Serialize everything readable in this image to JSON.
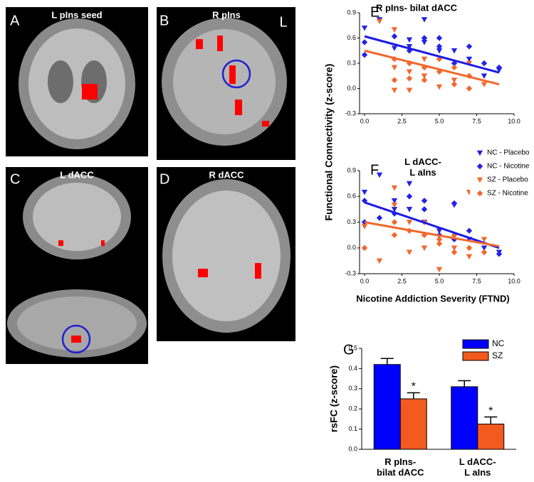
{
  "panels": [
    {
      "letter": "A",
      "label": "L pIns seed"
    },
    {
      "letter": "B",
      "label": "R pIns",
      "side": "L"
    },
    {
      "letter": "C",
      "label": "L dACC"
    },
    {
      "letter": "D",
      "label": "R dACC"
    }
  ],
  "chart_data": [
    {
      "type": "scatter",
      "letter": "E",
      "title": "R pIns- bilat dACC",
      "ylabel": "Functional Connectivity (z-score)",
      "xlim": [
        0,
        10
      ],
      "ylim": [
        -0.3,
        0.9
      ],
      "xticks": [
        {
          "value": 0,
          "label": "0.0"
        },
        2.5,
        {
          "value": 5,
          "label": "5.0"
        },
        7.5,
        {
          "value": 10,
          "label": "10.0"
        }
      ],
      "yticks": [
        -0.3,
        {
          "value": 0,
          "label": "0.0"
        },
        0.3,
        0.6,
        0.9
      ],
      "series": [
        {
          "color": "#2323e6",
          "marker": "triangle-down",
          "x": [
            0,
            1,
            2,
            3,
            4,
            4,
            5,
            6,
            7,
            8,
            9,
            3
          ],
          "values": [
            0.72,
            0.82,
            0.48,
            0.5,
            0.82,
            0.55,
            0.45,
            0.45,
            0.35,
            0.15,
            0.22,
            0.58
          ]
        },
        {
          "color": "#2323e6",
          "marker": "diamond",
          "x": [
            0,
            0,
            2,
            3,
            4,
            5,
            5,
            6,
            7,
            9,
            8
          ],
          "values": [
            0.4,
            0.55,
            0.62,
            0.45,
            0.6,
            0.5,
            0.6,
            0.3,
            0.5,
            0.25,
            0.3
          ]
        },
        {
          "color": "#f2682c",
          "marker": "triangle-down",
          "x": [
            1,
            2,
            2,
            2,
            3,
            4,
            4,
            5,
            6,
            7,
            8,
            3
          ],
          "values": [
            0.8,
            0.7,
            0.25,
            -0.02,
            0.2,
            0.35,
            0.15,
            0.02,
            0.1,
            0.3,
            0.05,
            -0.02
          ]
        },
        {
          "color": "#f2682c",
          "marker": "diamond",
          "x": [
            2,
            2,
            3,
            4,
            4,
            5,
            5,
            6,
            6,
            7,
            7,
            3
          ],
          "values": [
            0.35,
            0.1,
            0.3,
            0.25,
            0.1,
            0.2,
            0.35,
            0.25,
            0.05,
            0.15,
            0.0,
            0.12
          ]
        }
      ],
      "fits": [
        {
          "color": "#1a1ae6",
          "x": [
            0,
            9
          ],
          "values": [
            0.62,
            0.19
          ]
        },
        {
          "color": "#f2682c",
          "x": [
            0,
            9
          ],
          "values": [
            0.45,
            0.05
          ]
        }
      ]
    },
    {
      "type": "scatter",
      "letter": "F",
      "title": "L dACC-\nL aIns",
      "xlabel": "Nicotine Addiction Severity (FTND)",
      "xlim": [
        0,
        10
      ],
      "ylim": [
        -0.3,
        0.9
      ],
      "xticks": [
        {
          "value": 0,
          "label": "0.0"
        },
        2.5,
        {
          "value": 5,
          "label": "5.0"
        },
        7.5,
        {
          "value": 10,
          "label": "10.0"
        }
      ],
      "yticks": [
        -0.3,
        {
          "value": 0,
          "label": "0.0"
        },
        0.3,
        0.6,
        0.9
      ],
      "series": [
        {
          "name": "NC - Placebo",
          "color": "#2323e6",
          "marker": "triangle-down",
          "x": [
            0,
            1,
            2,
            3,
            3,
            4,
            5,
            6,
            7,
            8,
            9,
            2
          ],
          "values": [
            0.65,
            0.85,
            0.55,
            0.75,
            0.45,
            0.3,
            0.2,
            0.5,
            0.1,
            0.0,
            -0.05,
            0.45
          ]
        },
        {
          "name": "NC - Nicotine",
          "color": "#2323e6",
          "marker": "diamond",
          "x": [
            0,
            0,
            2,
            3,
            4,
            4,
            5,
            6,
            6,
            7,
            9,
            1
          ],
          "values": [
            0.55,
            0.3,
            0.4,
            0.6,
            0.45,
            0.55,
            0.15,
            0.52,
            0.1,
            0.2,
            -0.07,
            0.35
          ]
        },
        {
          "name": "SZ - Placebo",
          "color": "#f2682c",
          "marker": "triangle-down",
          "x": [
            0,
            1,
            2,
            2,
            3,
            4,
            5,
            6,
            7,
            7,
            8,
            3
          ],
          "values": [
            0.25,
            -0.15,
            0.7,
            0.5,
            0.3,
            0.0,
            -0.25,
            0.0,
            0.65,
            -0.1,
            0.1,
            -0.05
          ]
        },
        {
          "name": "SZ - Nicotine",
          "color": "#f2682c",
          "marker": "diamond",
          "x": [
            0,
            2,
            2,
            3,
            4,
            4,
            5,
            5,
            6,
            7,
            8,
            6
          ],
          "values": [
            0.0,
            0.3,
            0.15,
            0.2,
            0.15,
            0.3,
            0.1,
            0.05,
            0.15,
            0.0,
            -0.05,
            -0.05
          ]
        }
      ],
      "fits": [
        {
          "color": "#1a1ae6",
          "x": [
            0,
            9
          ],
          "values": [
            0.53,
            0.0
          ]
        },
        {
          "color": "#f2682c",
          "x": [
            0,
            9
          ],
          "values": [
            0.3,
            0.02
          ]
        }
      ]
    },
    {
      "type": "bar",
      "letter": "G",
      "ylabel": "rsFC (z-score)",
      "categories": [
        "R pIns-\nbilat dACC",
        "L dACC-\nL aIns"
      ],
      "ylim": [
        0,
        0.5
      ],
      "yticks": [
        {
          "value": 0,
          "label": "0.0"
        },
        0.1,
        0.2,
        0.3,
        0.4,
        0.5
      ],
      "series": [
        {
          "name": "NC",
          "color": "#0000ff",
          "values": [
            0.42,
            0.31
          ],
          "errors": [
            0.03,
            0.03
          ]
        },
        {
          "name": "SZ",
          "color": "#f25a1e",
          "values": [
            0.25,
            0.125
          ],
          "errors": [
            0.03,
            0.035
          ],
          "annotations": [
            "*",
            "*"
          ]
        }
      ]
    }
  ]
}
